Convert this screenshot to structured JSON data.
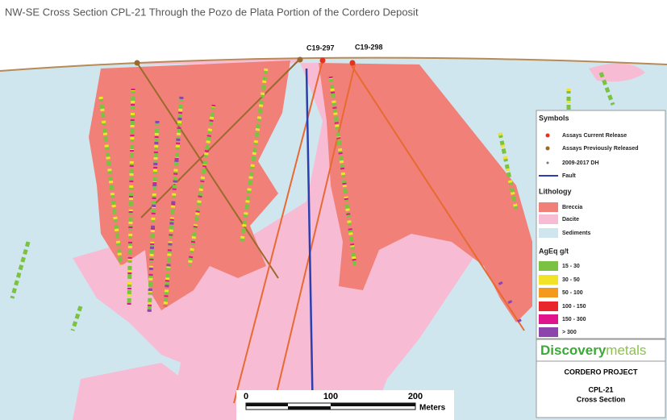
{
  "title": "NW-SE Cross Section CPL-21 Through the Pozo de Plata Portion of the Cordero Deposit",
  "holes": [
    "C19-297",
    "C19-298"
  ],
  "legend": {
    "symbols_heading": "Symbols",
    "symbols": [
      "Assays Current Release",
      "Assays Previously Released",
      "2009-2017 DH",
      "Fault"
    ],
    "lithology_heading": "Lithology",
    "lithology": [
      "Breccia",
      "Dacite",
      "Sediments"
    ],
    "grade_heading": "AgEq g/t",
    "grades": [
      "15 - 30",
      "30 - 50",
      "50 - 100",
      "100 - 150",
      "150 - 300",
      "> 300"
    ]
  },
  "logo": {
    "part1": "Discovery",
    "part2": "metals"
  },
  "project": {
    "name": "CORDERO PROJECT",
    "section_1": "CPL-21",
    "section_2": "Cross Section"
  },
  "scale": {
    "labels": [
      "0",
      "100",
      "200"
    ],
    "unit": "Meters"
  }
}
